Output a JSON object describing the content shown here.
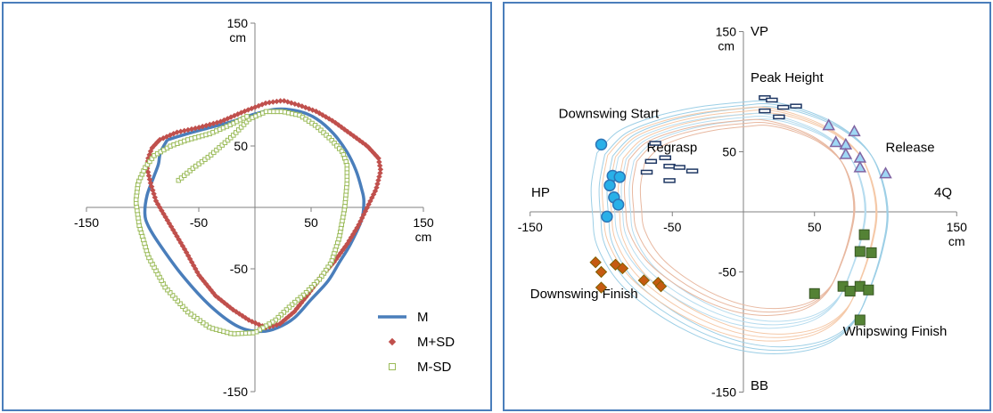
{
  "chart_data": [
    {
      "type": "line",
      "xlim": [
        -150,
        150
      ],
      "ylim": [
        -150,
        150
      ],
      "x_ticks": [
        "-150",
        "-50",
        "50",
        "150"
      ],
      "y_ticks": [
        "150",
        "50",
        "-50",
        "-150"
      ],
      "unit_label": "cm",
      "grid": false,
      "legend_position": "bottom-right",
      "series": [
        {
          "name": "M",
          "color": "#4a7ebb",
          "marker": "line",
          "points": [
            [
              -78,
              55
            ],
            [
              -60,
              60
            ],
            [
              -40,
              65
            ],
            [
              -20,
              70
            ],
            [
              0,
              76
            ],
            [
              20,
              80
            ],
            [
              40,
              78
            ],
            [
              55,
              72
            ],
            [
              70,
              60
            ],
            [
              82,
              45
            ],
            [
              90,
              30
            ],
            [
              95,
              15
            ],
            [
              97,
              5
            ],
            [
              95,
              -10
            ],
            [
              85,
              -30
            ],
            [
              75,
              -45
            ],
            [
              65,
              -60
            ],
            [
              50,
              -75
            ],
            [
              35,
              -90
            ],
            [
              20,
              -98
            ],
            [
              5,
              -101
            ],
            [
              -15,
              -97
            ],
            [
              -40,
              -80
            ],
            [
              -65,
              -55
            ],
            [
              -85,
              -30
            ],
            [
              -95,
              -15
            ],
            [
              -98,
              -5
            ],
            [
              -96,
              10
            ],
            [
              -90,
              25
            ],
            [
              -86,
              35
            ],
            [
              -84,
              45
            ],
            [
              -78,
              55
            ]
          ]
        },
        {
          "name": "M+SD",
          "color": "#c0504d",
          "marker": "diamond",
          "points": [
            [
              -95,
              40
            ],
            [
              -92,
              48
            ],
            [
              -85,
              55
            ],
            [
              -70,
              61
            ],
            [
              -50,
              65
            ],
            [
              -30,
              70
            ],
            [
              -10,
              78
            ],
            [
              10,
              85
            ],
            [
              25,
              87
            ],
            [
              40,
              83
            ],
            [
              55,
              78
            ],
            [
              70,
              70
            ],
            [
              85,
              60
            ],
            [
              100,
              50
            ],
            [
              110,
              40
            ],
            [
              112,
              30
            ],
            [
              108,
              15
            ],
            [
              100,
              0
            ],
            [
              92,
              -15
            ],
            [
              82,
              -30
            ],
            [
              70,
              -45
            ],
            [
              60,
              -55
            ],
            [
              48,
              -70
            ],
            [
              35,
              -85
            ],
            [
              22,
              -95
            ],
            [
              10,
              -98
            ],
            [
              -5,
              -92
            ],
            [
              -20,
              -83
            ],
            [
              -35,
              -72
            ],
            [
              -50,
              -55
            ],
            [
              -62,
              -35
            ],
            [
              -75,
              -15
            ],
            [
              -88,
              5
            ],
            [
              -93,
              20
            ],
            [
              -96,
              32
            ],
            [
              -95,
              40
            ]
          ]
        },
        {
          "name": "M-SD",
          "color": "#9bbb59",
          "marker": "square",
          "points": [
            [
              -68,
              22
            ],
            [
              -55,
              32
            ],
            [
              -40,
              42
            ],
            [
              -20,
              58
            ],
            [
              -5,
              72
            ],
            [
              10,
              78
            ],
            [
              25,
              78
            ],
            [
              40,
              75
            ],
            [
              55,
              66
            ],
            [
              68,
              55
            ],
            [
              78,
              45
            ],
            [
              82,
              35
            ],
            [
              82,
              20
            ],
            [
              80,
              0
            ],
            [
              75,
              -25
            ],
            [
              68,
              -45
            ],
            [
              58,
              -58
            ],
            [
              45,
              -70
            ],
            [
              32,
              -80
            ],
            [
              18,
              -92
            ],
            [
              0,
              -102
            ],
            [
              -20,
              -103
            ],
            [
              -40,
              -98
            ],
            [
              -60,
              -85
            ],
            [
              -80,
              -65
            ],
            [
              -95,
              -40
            ],
            [
              -103,
              -15
            ],
            [
              -106,
              5
            ],
            [
              -104,
              20
            ],
            [
              -98,
              32
            ],
            [
              -90,
              42
            ],
            [
              -75,
              50
            ],
            [
              -60,
              55
            ],
            [
              -40,
              60
            ],
            [
              -20,
              68
            ],
            [
              -5,
              75
            ]
          ]
        }
      ]
    },
    {
      "type": "scatter",
      "xlim": [
        -150,
        150
      ],
      "ylim": [
        -150,
        150
      ],
      "x_ticks": [
        "-150",
        "-50",
        "50",
        "150"
      ],
      "y_ticks": [
        "150",
        "50",
        "-50",
        "-150"
      ],
      "unit_label": "cm",
      "axis_labels": {
        "top": "VP",
        "bottom": "BB",
        "left": "HP",
        "right": "4Q"
      },
      "grid": false,
      "annotations": [
        {
          "text": "Downswing Start",
          "x": -130,
          "y": 78
        },
        {
          "text": "Peak Height",
          "x": 5,
          "y": 108
        },
        {
          "text": "Release",
          "x": 100,
          "y": 50
        },
        {
          "text": "Regrasp",
          "x": -68,
          "y": 50
        },
        {
          "text": "Downswing Finish",
          "x": -150,
          "y": -72
        },
        {
          "text": "Whipswing Finish",
          "x": 70,
          "y": -103
        }
      ],
      "loop_colors": [
        "#9dcfe6",
        "#f5c9a8",
        "#b6dcef",
        "#e8b8a0"
      ],
      "series": [
        {
          "marker": "circle",
          "fill": "#29b0e8",
          "stroke": "#2e75b6",
          "points": [
            [
              -100,
              56
            ],
            [
              -92,
              30
            ],
            [
              -87,
              29
            ],
            [
              -94,
              22
            ],
            [
              -91,
              12
            ],
            [
              -88,
              6
            ],
            [
              -96,
              -4
            ]
          ]
        },
        {
          "marker": "dash",
          "fill": "#ffffff",
          "stroke": "#1f3864",
          "points": [
            [
              -62,
              57
            ],
            [
              -65,
              42
            ],
            [
              -55,
              45
            ],
            [
              -52,
              38
            ],
            [
              -45,
              37
            ],
            [
              -68,
              33
            ],
            [
              -36,
              34
            ],
            [
              -52,
              26
            ],
            [
              15,
              95
            ],
            [
              20,
              93
            ],
            [
              28,
              87
            ],
            [
              37,
              88
            ],
            [
              15,
              84
            ],
            [
              25,
              79
            ]
          ]
        },
        {
          "marker": "triangle",
          "fill": "#9fd7f5",
          "stroke": "#8064a2",
          "points": [
            [
              60,
              72
            ],
            [
              78,
              67
            ],
            [
              65,
              58
            ],
            [
              72,
              56
            ],
            [
              72,
              48
            ],
            [
              82,
              45
            ],
            [
              82,
              37
            ],
            [
              100,
              32
            ]
          ]
        },
        {
          "marker": "diamond",
          "fill": "#c55a11",
          "stroke": "#7f6000",
          "points": [
            [
              -104,
              -42
            ],
            [
              -100,
              -50
            ],
            [
              -90,
              -44
            ],
            [
              -85,
              -47
            ],
            [
              -100,
              -63
            ],
            [
              -70,
              -57
            ],
            [
              -60,
              -59
            ],
            [
              -58,
              -62
            ]
          ]
        },
        {
          "marker": "square",
          "fill": "#548235",
          "stroke": "#375623",
          "points": [
            [
              85,
              -19
            ],
            [
              82,
              -33
            ],
            [
              90,
              -34
            ],
            [
              82,
              -62
            ],
            [
              70,
              -62
            ],
            [
              75,
              -66
            ],
            [
              88,
              -65
            ],
            [
              50,
              -68
            ],
            [
              82,
              -90
            ]
          ]
        }
      ]
    }
  ],
  "left_legend": [
    {
      "label": "M",
      "marker": "line",
      "color": "#4a7ebb"
    },
    {
      "label": "M+SD",
      "marker": "diamond",
      "color": "#c0504d"
    },
    {
      "label": "M-SD",
      "marker": "square",
      "color": "#9bbb59"
    }
  ]
}
